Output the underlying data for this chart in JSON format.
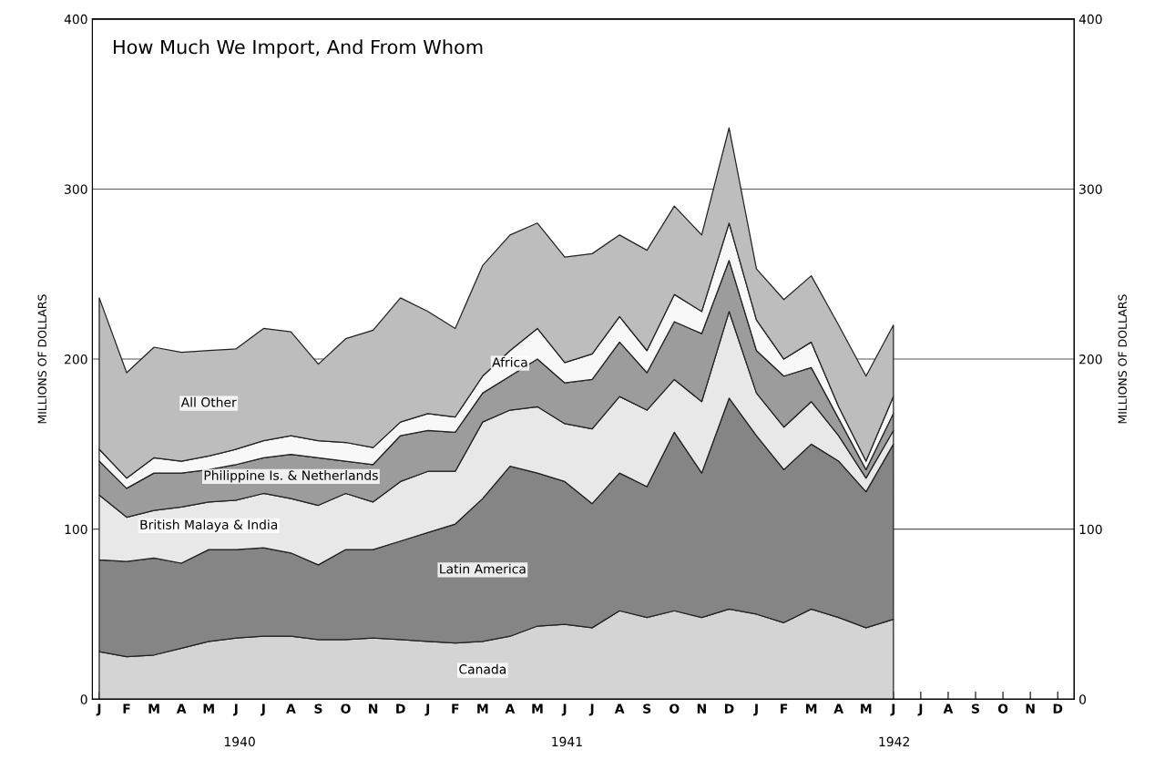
{
  "chart_data": {
    "type": "area",
    "stacked": true,
    "title": "How Much We Import, And From Whom",
    "ylabel": "MILLIONS OF DOLLARS",
    "y2label": "MILLIONS OF DOLLARS",
    "categories": [
      "J",
      "F",
      "M",
      "A",
      "M",
      "J",
      "J",
      "A",
      "S",
      "O",
      "N",
      "D",
      "J",
      "F",
      "M",
      "A",
      "M",
      "J",
      "J",
      "A",
      "S",
      "O",
      "N",
      "D",
      "J",
      "F",
      "M",
      "A",
      "M",
      "J",
      "J",
      "A",
      "S",
      "O",
      "N",
      "D"
    ],
    "ylim": [
      0,
      400
    ],
    "yticks": [
      0,
      100,
      200,
      300,
      400
    ],
    "y2lim": [
      0,
      400
    ],
    "y2ticks": [
      0,
      100,
      200,
      300,
      400
    ],
    "grid": "y",
    "legend": false,
    "annotations": [
      "1940",
      "1941",
      "1942"
    ],
    "series": [
      {
        "name": "Canada",
        "color": "#d4d4d4",
        "values": [
          28,
          25,
          26,
          30,
          34,
          36,
          37,
          37,
          35,
          35,
          36,
          35,
          34,
          33,
          34,
          37,
          43,
          44,
          42,
          52,
          48,
          52,
          48,
          53,
          50,
          45,
          53,
          48,
          42,
          47,
          null,
          null,
          null,
          null,
          null,
          null
        ]
      },
      {
        "name": "Latin America",
        "color": "#858585",
        "values": [
          54,
          56,
          57,
          50,
          54,
          52,
          52,
          49,
          44,
          53,
          52,
          58,
          64,
          70,
          84,
          100,
          90,
          84,
          73,
          81,
          77,
          105,
          85,
          124,
          105,
          90,
          97,
          92,
          80,
          103,
          null,
          null,
          null,
          null,
          null,
          null
        ]
      },
      {
        "name": "British Malaya & India",
        "color": "#e8e8e8",
        "values": [
          38,
          26,
          28,
          33,
          28,
          29,
          32,
          32,
          35,
          33,
          28,
          35,
          36,
          31,
          45,
          33,
          39,
          34,
          44,
          45,
          45,
          31,
          42,
          51,
          25,
          25,
          25,
          15,
          8,
          8,
          null,
          null,
          null,
          null,
          null,
          null
        ]
      },
      {
        "name": "Philippine Is. & Netherlands",
        "color": "#9c9c9c",
        "values": [
          20,
          17,
          22,
          20,
          19,
          21,
          21,
          26,
          28,
          19,
          22,
          27,
          24,
          23,
          17,
          20,
          28,
          24,
          29,
          32,
          22,
          34,
          40,
          30,
          25,
          30,
          20,
          10,
          5,
          10,
          null,
          null,
          null,
          null,
          null,
          null
        ]
      },
      {
        "name": "Africa",
        "color": "#f8f8f8",
        "values": [
          7,
          6,
          9,
          7,
          8,
          9,
          10,
          11,
          10,
          11,
          10,
          8,
          10,
          9,
          10,
          15,
          18,
          12,
          15,
          15,
          13,
          16,
          13,
          22,
          18,
          10,
          15,
          7,
          5,
          10,
          null,
          null,
          null,
          null,
          null,
          null
        ]
      },
      {
        "name": "All Other",
        "color": "#bdbdbd",
        "values": [
          89,
          62,
          65,
          64,
          62,
          59,
          66,
          61,
          45,
          61,
          69,
          73,
          60,
          52,
          65,
          68,
          62,
          62,
          59,
          48,
          59,
          52,
          45,
          56,
          30,
          35,
          39,
          48,
          50,
          42,
          null,
          null,
          null,
          null,
          null,
          null
        ]
      }
    ]
  }
}
